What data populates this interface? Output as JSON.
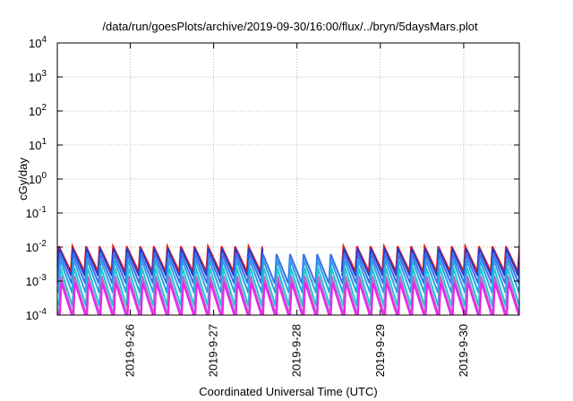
{
  "chart_data": {
    "type": "line",
    "title": "/data/run/goesPlots/archive/2019-09-30/16:00/flux/../bryn/5daysMars.plot",
    "xlabel": "Coordinated Universal Time (UTC)",
    "ylabel": "cGy/day",
    "y_scale": "log",
    "ylim": [
      0.0001,
      10000
    ],
    "xlim": [
      "2019-09-25 03:00",
      "2019-09-30 16:00"
    ],
    "grid": true,
    "y_ticks": [
      {
        "value": 0.0001,
        "mantissa": "10",
        "exp": "-4"
      },
      {
        "value": 0.001,
        "mantissa": "10",
        "exp": "-3"
      },
      {
        "value": 0.01,
        "mantissa": "10",
        "exp": "-2"
      },
      {
        "value": 0.1,
        "mantissa": "10",
        "exp": "-1"
      },
      {
        "value": 1,
        "mantissa": "10",
        "exp": "0"
      },
      {
        "value": 10,
        "mantissa": "10",
        "exp": "1"
      },
      {
        "value": 100,
        "mantissa": "10",
        "exp": "2"
      },
      {
        "value": 1000,
        "mantissa": "10",
        "exp": "3"
      },
      {
        "value": 10000,
        "mantissa": "10",
        "exp": "4"
      }
    ],
    "x_ticks": [
      "2019-9-26",
      "2019-9-27",
      "2019-9-28",
      "2019-9-29",
      "2019-9-30"
    ],
    "sawtooth_period_hours": 3.9,
    "series": [
      {
        "color": "#e31a1c",
        "peak": 0.0105,
        "trough": 0.0019,
        "gap": [
          "2019-09-27 16:00",
          "2019-09-28 12:00"
        ]
      },
      {
        "color": "#1f3fd0",
        "peak": 0.009,
        "trough": 0.0014,
        "gap": [
          "2019-09-27 16:00",
          "2019-09-28 12:00"
        ]
      },
      {
        "color": "#3a6fe8",
        "peak": 0.0062,
        "trough": 0.00085
      },
      {
        "color": "#2a9fe8",
        "peak": 0.0042,
        "trough": 0.00045
      },
      {
        "color": "#22c4d0",
        "peak": 0.0025,
        "trough": 0.00018
      },
      {
        "color": "#b06ad0",
        "peak": 0.0014,
        "trough": 0.0001
      },
      {
        "color": "#ee22ee",
        "peak": 0.0009,
        "trough": 7e-05
      }
    ]
  }
}
